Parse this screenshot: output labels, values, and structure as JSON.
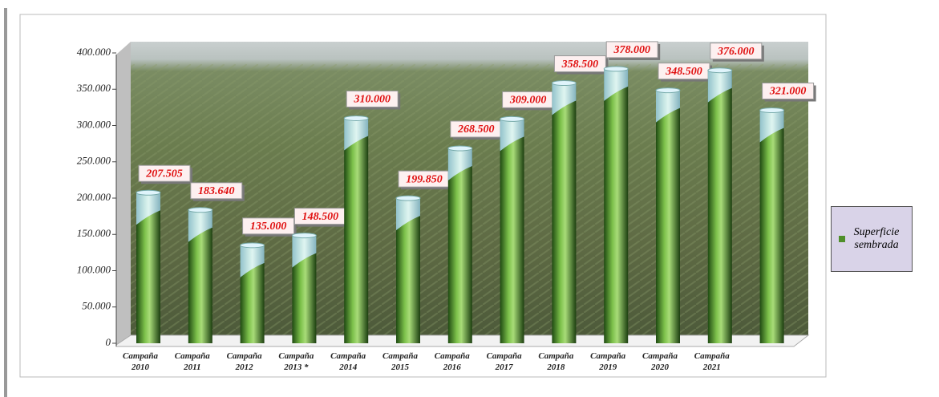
{
  "chart_data": {
    "type": "bar",
    "categories": [
      "Campaña 2010",
      "Campaña 2011",
      "Campaña 2012",
      "Campaña 2013 *",
      "Campaña 2014",
      "Campaña 2015",
      "Campaña 2016",
      "Campaña 2017",
      "Campaña 2018",
      "Campaña 2019",
      "Campaña 2020",
      "Campaña 2021",
      null
    ],
    "series": [
      {
        "name": "Superficie sembrada",
        "color": "#4f8f2a",
        "values": [
          207505,
          183640,
          135000,
          148500,
          310000,
          199850,
          268500,
          309000,
          358500,
          378000,
          348500,
          376000,
          321000
        ],
        "value_labels": [
          "207.505",
          "183.640",
          "135.000",
          "148.500",
          "310.000",
          "199.850",
          "268.500",
          "309.000",
          "358.500",
          "378.000",
          "348.500",
          "376.000",
          "321.000"
        ]
      }
    ],
    "ylim": [
      0,
      400000
    ],
    "yticks": [
      0,
      {
        "value": 50000,
        "label": "50.000"
      },
      {
        "value": 100000,
        "label": "100.000"
      },
      {
        "value": 150000,
        "label": "150.000"
      },
      {
        "value": 200000,
        "label": "200.000"
      },
      {
        "value": 250000,
        "label": "250.000"
      },
      {
        "value": 300000,
        "label": "300.000"
      },
      {
        "value": 350000,
        "label": "350.000"
      },
      {
        "value": 400000,
        "label": "400.000"
      }
    ],
    "legend": "right"
  }
}
